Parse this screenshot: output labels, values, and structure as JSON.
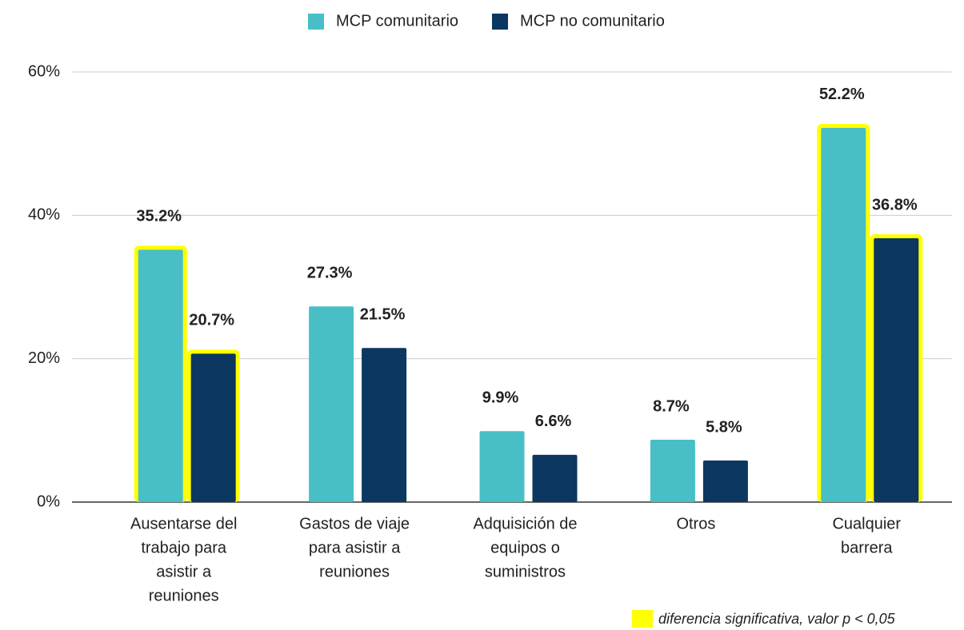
{
  "chart_data": {
    "type": "bar",
    "categories": [
      [
        "Ausentarse del",
        "trabajo para",
        "asistir a",
        "reuniones"
      ],
      [
        "Gastos de viaje",
        "para asistir a",
        "reuniones"
      ],
      [
        "Adquisición de",
        "equipos o",
        "suministros"
      ],
      [
        "Otros"
      ],
      [
        "Cualquier",
        "barrera"
      ]
    ],
    "series": [
      {
        "name": "MCP comunitario",
        "color": "#48bfc6",
        "values": [
          35.2,
          27.3,
          9.9,
          8.7,
          52.2
        ],
        "value_labels": [
          "35.2%",
          "27.3%",
          "9.9%",
          "8.7%",
          "52.2%"
        ],
        "significant": [
          true,
          false,
          false,
          false,
          true
        ]
      },
      {
        "name": "MCP no comunitario",
        "color": "#0b3761",
        "values": [
          20.7,
          21.5,
          6.6,
          5.8,
          36.8
        ],
        "value_labels": [
          "20.7%",
          "21.5%",
          "6.6%",
          "5.8%",
          "36.8%"
        ],
        "significant": [
          true,
          false,
          false,
          false,
          true
        ]
      }
    ],
    "highlight_color": "#ffff00",
    "ylim": [
      0,
      60
    ],
    "yticks": [
      {
        "value": 0,
        "label": "0%"
      },
      {
        "value": 20,
        "label": "20%"
      },
      {
        "value": 40,
        "label": "40%"
      },
      {
        "value": 60,
        "label": "60%"
      }
    ],
    "grid": true,
    "legend": "top",
    "annotation": "diferencia significativa, valor p < 0,05"
  }
}
